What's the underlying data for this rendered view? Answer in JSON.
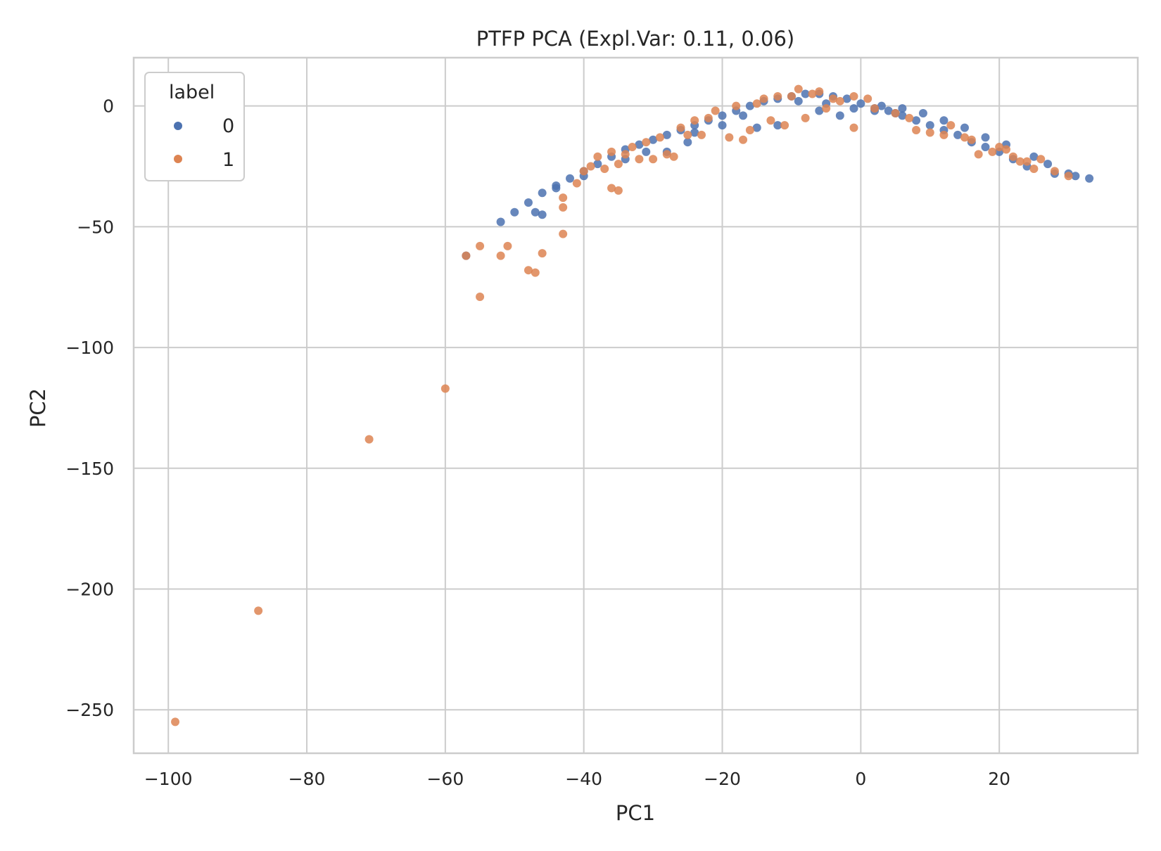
{
  "chart_data": {
    "type": "scatter",
    "title": "PTFP PCA (Expl.Var: 0.11, 0.06)",
    "xlabel": "PC1",
    "ylabel": "PC2",
    "xlim": [
      -105,
      40
    ],
    "ylim": [
      -268,
      20
    ],
    "xticks": [
      -100,
      -80,
      -60,
      -40,
      -20,
      0,
      20
    ],
    "yticks": [
      0,
      -50,
      -100,
      -150,
      -200,
      -250
    ],
    "xtick_labels": [
      "−100",
      "−80",
      "−60",
      "−40",
      "−20",
      "0",
      "20"
    ],
    "ytick_labels": [
      "0",
      "−50",
      "−100",
      "−150",
      "−200",
      "−250"
    ],
    "grid": true,
    "legend": {
      "title": "label",
      "placement": "top-left"
    },
    "series": [
      {
        "name": "0",
        "color": "#4c72b0",
        "points": [
          [
            33,
            -30
          ],
          [
            31,
            -29
          ],
          [
            28,
            -28
          ],
          [
            24,
            -25
          ],
          [
            22,
            -22
          ],
          [
            20,
            -19
          ],
          [
            18,
            -17
          ],
          [
            16,
            -15
          ],
          [
            14,
            -12
          ],
          [
            12,
            -10
          ],
          [
            10,
            -8
          ],
          [
            8,
            -6
          ],
          [
            6,
            -4
          ],
          [
            4,
            -2
          ],
          [
            2,
            -1
          ],
          [
            0,
            1
          ],
          [
            -2,
            3
          ],
          [
            -4,
            4
          ],
          [
            -6,
            5
          ],
          [
            -8,
            5
          ],
          [
            -10,
            4
          ],
          [
            -12,
            3
          ],
          [
            -14,
            2
          ],
          [
            -16,
            0
          ],
          [
            -18,
            -2
          ],
          [
            -20,
            -4
          ],
          [
            -22,
            -6
          ],
          [
            -24,
            -8
          ],
          [
            -26,
            -10
          ],
          [
            -28,
            -12
          ],
          [
            -30,
            -14
          ],
          [
            -32,
            -16
          ],
          [
            -34,
            -18
          ],
          [
            -36,
            -21
          ],
          [
            -38,
            -24
          ],
          [
            -40,
            -27
          ],
          [
            -42,
            -30
          ],
          [
            -44,
            -33
          ],
          [
            -46,
            -36
          ],
          [
            -48,
            -40
          ],
          [
            -50,
            -44
          ],
          [
            -52,
            -48
          ],
          [
            -57,
            -62
          ],
          [
            -46,
            -45
          ],
          [
            -47,
            -44
          ],
          [
            -44,
            -34
          ],
          [
            -40,
            -29
          ],
          [
            -34,
            -22
          ],
          [
            -28,
            -19
          ],
          [
            -25,
            -15
          ],
          [
            -20,
            -8
          ],
          [
            -15,
            -9
          ],
          [
            -12,
            -8
          ],
          [
            -6,
            -2
          ],
          [
            -3,
            -4
          ],
          [
            3,
            0
          ],
          [
            6,
            -1
          ],
          [
            9,
            -3
          ],
          [
            12,
            -6
          ],
          [
            15,
            -9
          ],
          [
            18,
            -13
          ],
          [
            21,
            -16
          ],
          [
            25,
            -21
          ],
          [
            27,
            -24
          ],
          [
            30,
            -28
          ],
          [
            -9,
            2
          ],
          [
            -5,
            1
          ],
          [
            -1,
            -1
          ],
          [
            2,
            -2
          ],
          [
            5,
            -3
          ],
          [
            -17,
            -4
          ],
          [
            -24,
            -11
          ],
          [
            -31,
            -19
          ]
        ]
      },
      {
        "name": "1",
        "color": "#dd8452",
        "points": [
          [
            -99,
            -255
          ],
          [
            -87,
            -209
          ],
          [
            -71,
            -138
          ],
          [
            -60,
            -117
          ],
          [
            -55,
            -79
          ],
          [
            -57,
            -62
          ],
          [
            -55,
            -58
          ],
          [
            -52,
            -62
          ],
          [
            -51,
            -58
          ],
          [
            -48,
            -68
          ],
          [
            -47,
            -69
          ],
          [
            -46,
            -61
          ],
          [
            -43,
            -53
          ],
          [
            -43,
            -42
          ],
          [
            -43,
            -38
          ],
          [
            -41,
            -32
          ],
          [
            -36,
            -34
          ],
          [
            -35,
            -35
          ],
          [
            -35,
            -24
          ],
          [
            -34,
            -20
          ],
          [
            -32,
            -22
          ],
          [
            -30,
            -22
          ],
          [
            -28,
            -20
          ],
          [
            -27,
            -21
          ],
          [
            -25,
            -12
          ],
          [
            -23,
            -12
          ],
          [
            -19,
            -13
          ],
          [
            -17,
            -14
          ],
          [
            -16,
            -10
          ],
          [
            -13,
            -6
          ],
          [
            -11,
            -8
          ],
          [
            -8,
            -5
          ],
          [
            -5,
            -1
          ],
          [
            -3,
            2
          ],
          [
            -1,
            4
          ],
          [
            1,
            3
          ],
          [
            -1,
            -9
          ],
          [
            8,
            -10
          ],
          [
            10,
            -11
          ],
          [
            12,
            -12
          ],
          [
            15,
            -13
          ],
          [
            17,
            -20
          ],
          [
            19,
            -19
          ],
          [
            22,
            -21
          ],
          [
            24,
            -23
          ],
          [
            26,
            -22
          ],
          [
            28,
            -27
          ],
          [
            30,
            -29
          ],
          [
            21,
            -18
          ],
          [
            25,
            -26
          ],
          [
            -7,
            5
          ],
          [
            -10,
            4
          ],
          [
            -12,
            4
          ],
          [
            -14,
            3
          ],
          [
            -18,
            0
          ],
          [
            -21,
            -2
          ],
          [
            -24,
            -6
          ],
          [
            -26,
            -9
          ],
          [
            -29,
            -13
          ],
          [
            -31,
            -15
          ],
          [
            -33,
            -17
          ],
          [
            -38,
            -21
          ],
          [
            -40,
            -27
          ],
          [
            2,
            -1
          ],
          [
            5,
            -3
          ],
          [
            7,
            -5
          ],
          [
            13,
            -8
          ],
          [
            16,
            -14
          ],
          [
            20,
            -17
          ],
          [
            23,
            -23
          ],
          [
            -4,
            3
          ],
          [
            -6,
            6
          ],
          [
            -9,
            7
          ],
          [
            -15,
            1
          ],
          [
            -22,
            -5
          ],
          [
            -36,
            -19
          ],
          [
            -39,
            -25
          ],
          [
            -37,
            -26
          ]
        ]
      }
    ]
  }
}
